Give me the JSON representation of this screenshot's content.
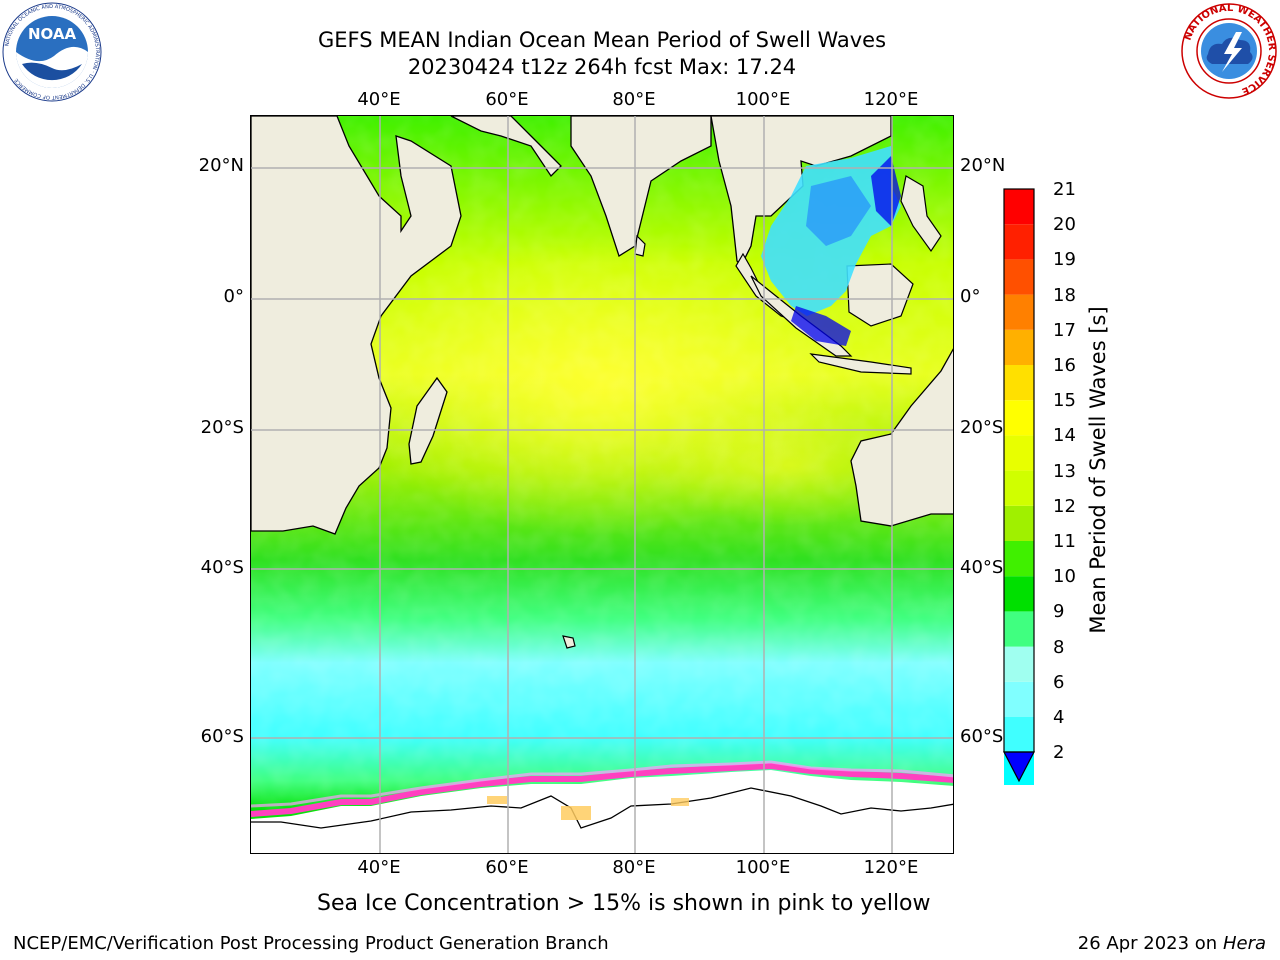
{
  "title": {
    "line1": "GEFS MEAN Indian Ocean Mean Period of Swell Waves",
    "line2": "20230424 t12z 264h fcst   Max: 17.24"
  },
  "map": {
    "lon_labels": [
      "40°E",
      "60°E",
      "80°E",
      "100°E",
      "120°E"
    ],
    "lat_labels": [
      "20°N",
      "0°",
      "20°S",
      "40°S",
      "60°S"
    ],
    "land_color": "#efedde",
    "grid_color": "#b0b0b0"
  },
  "colorbar": {
    "label": "Mean Period of Swell Waves [s]",
    "ticks": [
      "21",
      "20",
      "19",
      "18",
      "17",
      "16",
      "15",
      "14",
      "13",
      "12",
      "11",
      "10",
      "9",
      "8",
      "6",
      "4",
      "2"
    ],
    "colors": [
      "#0000ff",
      "#0080ff",
      "#00ffff",
      "#40ffff",
      "#80ffff",
      "#a0fff0",
      "#40ff80",
      "#00e000",
      "#40f000",
      "#a0f000",
      "#d0ff00",
      "#e8ff00",
      "#ffff00",
      "#ffe000",
      "#ffb000",
      "#ff8000",
      "#ff5000",
      "#ff2000",
      "#ff0000"
    ]
  },
  "note": "Sea Ice Concentration > 15% is shown in pink to yellow",
  "footer": {
    "left": "NCEP/EMC/Verification Post Processing Product Generation Branch",
    "date": "26 Apr 2023 on ",
    "machine": "Hera"
  },
  "logos": {
    "noaa": {
      "text": "NOAA",
      "ring_text": "NATIONAL OCEANIC AND ATMOSPHERIC ADMINISTRATION · U.S. DEPARTMENT OF COMMERCE"
    },
    "nws": {
      "ring_text": "NATIONAL WEATHER SERVICE"
    }
  }
}
